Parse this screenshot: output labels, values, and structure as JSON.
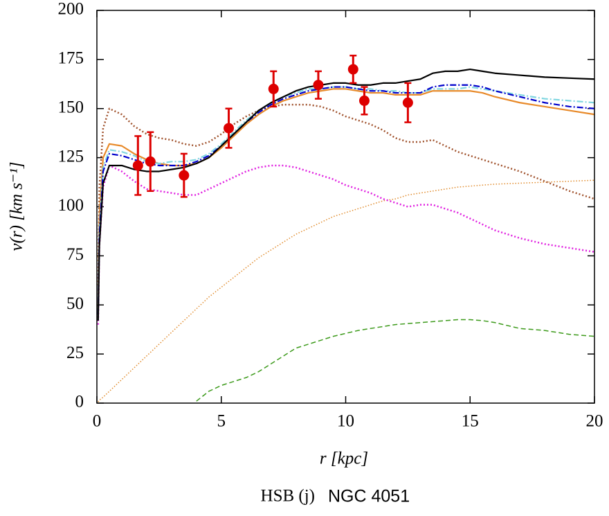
{
  "chart_data": {
    "type": "line",
    "title": "NGC 4051",
    "subtitle": "HSB (j)",
    "x_label": "r [kpc]",
    "y_label": "v(r) [km s⁻¹]",
    "xlim": [
      0,
      20
    ],
    "ylim": [
      0,
      200
    ],
    "xticks": [
      0,
      5,
      10,
      15,
      20
    ],
    "yticks": [
      0,
      25,
      50,
      75,
      100,
      125,
      150,
      175,
      200
    ],
    "x": [
      0.05,
      0.1,
      0.25,
      0.5,
      1,
      1.5,
      2,
      2.5,
      3,
      3.5,
      4,
      4.5,
      5,
      5.5,
      6,
      6.5,
      7,
      7.5,
      8,
      8.5,
      9,
      9.5,
      10,
      10.5,
      11,
      11.5,
      12,
      12.5,
      13,
      13.5,
      14,
      14.5,
      15,
      15.5,
      16,
      17,
      18,
      19,
      20
    ],
    "series": [
      {
        "color": "#e08a2a",
        "dash": "dotted-thin",
        "values": [
          0.6,
          1.5,
          3,
          6,
          12,
          18,
          24,
          30,
          36,
          42,
          48,
          54,
          59,
          64,
          69,
          74,
          78,
          82,
          86,
          89,
          92,
          95,
          97,
          99,
          101,
          103,
          104,
          106,
          107,
          108,
          109,
          110,
          110.5,
          111,
          111.5,
          112,
          112.5,
          113,
          113.5
        ]
      },
      {
        "color": "#3c9a1a",
        "dash": "dashed",
        "values": [
          null,
          null,
          null,
          null,
          null,
          null,
          null,
          null,
          null,
          null,
          1,
          6,
          9,
          11,
          13,
          16,
          20,
          24,
          28,
          30,
          32,
          34,
          35.5,
          37,
          38,
          39,
          40,
          40.5,
          41,
          41.5,
          42,
          42.5,
          42.5,
          42,
          41,
          38,
          37,
          35,
          34
        ]
      },
      {
        "color": "#a0522d",
        "dash": "dotted",
        "values": [
          60,
          110,
          140,
          150,
          147,
          141,
          137,
          135,
          134,
          132,
          131,
          133,
          137,
          142,
          146,
          149,
          151,
          152,
          152,
          152,
          151,
          149,
          146,
          144,
          142,
          139,
          135,
          133,
          133,
          134,
          131,
          128,
          126,
          124,
          122,
          118,
          113,
          108,
          104
        ]
      },
      {
        "color": "#e020e0",
        "dash": "dotted",
        "values": [
          40,
          80,
          110,
          121,
          118,
          113,
          109,
          108,
          107,
          106,
          106,
          109,
          112,
          115,
          118,
          120,
          121,
          121,
          120,
          118,
          116,
          114,
          111,
          109,
          107,
          104,
          102,
          100,
          101,
          101,
          99,
          97,
          94,
          91,
          88,
          84,
          81,
          79,
          77
        ]
      },
      {
        "color": "#e88a2a",
        "dash": "solid",
        "values": [
          48,
          95,
          125,
          132,
          131,
          127,
          124,
          122,
          121,
          121,
          122,
          125,
          130,
          136,
          142,
          147,
          151,
          154,
          156,
          158,
          159,
          160,
          160,
          159,
          158,
          158,
          157,
          157,
          157,
          159,
          159,
          159,
          159,
          158,
          156,
          153,
          151,
          149,
          147
        ]
      },
      {
        "color": "#7fd6e0",
        "dash": "dashdot",
        "values": [
          46,
          88,
          120,
          129,
          128,
          126,
          123,
          122,
          123,
          123,
          124,
          127,
          132,
          138,
          144,
          149,
          153,
          156,
          158,
          160,
          160,
          161,
          161,
          160,
          160,
          159,
          159,
          158,
          158,
          160,
          160,
          160,
          161,
          160,
          159,
          157,
          155,
          154,
          153
        ]
      },
      {
        "color": "#0000cc",
        "dash": "dashdot",
        "values": [
          45,
          85,
          118,
          127,
          126,
          124,
          122,
          121,
          121,
          121,
          123,
          126,
          131,
          137,
          143,
          148,
          152,
          155,
          157,
          159,
          160,
          161,
          161,
          160,
          159,
          159,
          158,
          158,
          158,
          161,
          162,
          162,
          162,
          161,
          159,
          156,
          153,
          151,
          150
        ]
      },
      {
        "color": "#000000",
        "dash": "solid",
        "values": [
          42,
          80,
          112,
          121,
          121,
          119,
          118,
          118,
          119,
          120,
          122,
          125,
          131,
          137,
          143,
          149,
          153,
          156,
          159,
          161,
          162,
          163,
          163,
          162,
          162,
          163,
          163,
          164,
          165,
          168,
          169,
          169,
          170,
          169,
          168,
          167,
          166,
          165.5,
          165
        ]
      }
    ],
    "points": {
      "color": "#dd0000",
      "x": [
        1.65,
        2.15,
        3.5,
        5.3,
        7.1,
        8.9,
        10.3,
        10.75,
        12.5
      ],
      "values": [
        121,
        123,
        116,
        140,
        160,
        162,
        170,
        154,
        153
      ],
      "errors": [
        15,
        15,
        11,
        10,
        9,
        7,
        7,
        7,
        10
      ]
    }
  }
}
